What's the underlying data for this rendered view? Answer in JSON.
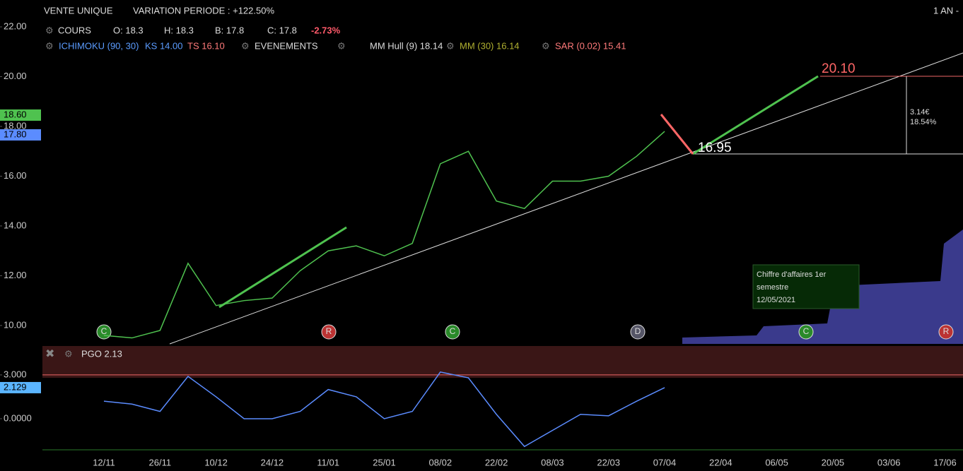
{
  "header": {
    "title": "VENTE UNIQUE",
    "variation": "VARIATION PERIODE : +122.50%",
    "period": "1 AN -"
  },
  "legend_row1": [
    "COURS",
    "O: 18.3",
    "H: 18.3",
    "B: 17.8",
    "C: 17.8",
    "-2.73%"
  ],
  "legend_row2": [
    "ICHIMOKU (90, 30)",
    "KS 14.00",
    "TS 16.10",
    "EVENEMENTS",
    "MM Hull (9) 18.14",
    "MM (30) 16.14",
    "SAR (0.02) 15.41"
  ],
  "price_tags": [
    "18.60",
    "17.80"
  ],
  "annotations": {
    "target": "20.10",
    "base": "16.95",
    "gain": "3.14€",
    "gain_pct": "18.54%",
    "event_title": "Chiffre d'affaires 1er semestre",
    "event_date": "12/05/2021",
    "badges": [
      "C",
      "R",
      "C",
      "D",
      "C",
      "R"
    ]
  },
  "chart_data": [
    {
      "type": "line",
      "categories": [
        "12/11",
        null,
        "26/11",
        null,
        "10/12",
        null,
        "24/12",
        null,
        "11/01",
        null,
        "25/01",
        null,
        "08/02",
        null,
        "22/02",
        null,
        "08/03",
        null,
        "22/03",
        null,
        "07/04",
        null,
        "22/04",
        null,
        "06/05",
        null,
        "20/05",
        null,
        "03/06",
        null,
        "17/06"
      ],
      "series": [
        {
          "name": "COURS",
          "color": "#4fc24f",
          "values": [
            9.6,
            9.5,
            9.8,
            12.5,
            10.8,
            11.0,
            11.1,
            12.2,
            13.0,
            13.2,
            12.8,
            13.3,
            16.5,
            17.0,
            15.0,
            14.7,
            15.8,
            15.8,
            16.0,
            16.8,
            17.8,
            null,
            null,
            null,
            null,
            null,
            null,
            null,
            null,
            null,
            null
          ]
        }
      ],
      "ylim": [
        9.26,
        23.08
      ],
      "yticks": [
        {
          "value": 10,
          "label": "10.00"
        },
        {
          "value": 12,
          "label": "12.00"
        },
        {
          "value": 14,
          "label": "14.00"
        },
        {
          "value": 16,
          "label": "16.00"
        },
        {
          "value": 18,
          "label": "18.00"
        },
        {
          "value": 20,
          "label": "20.00"
        },
        {
          "value": 22,
          "label": "22.00"
        }
      ]
    },
    {
      "type": "line",
      "title": "PGO 2.13",
      "series": [
        {
          "name": "PGO",
          "color": "#5b8cff",
          "values": [
            1.2,
            1.0,
            0.5,
            2.9,
            1.5,
            0.0,
            0.0,
            0.5,
            2.0,
            1.5,
            0.0,
            0.5,
            3.2,
            2.8,
            0.3,
            -1.9,
            -0.8,
            0.3,
            0.2,
            1.2,
            2.129
          ]
        }
      ],
      "value_label": "2.129",
      "ylim": [
        -2.13,
        4.98
      ],
      "yticks": [
        {
          "value": 0,
          "label": "0.0000"
        },
        {
          "value": 3,
          "label": "3.000"
        }
      ]
    }
  ]
}
